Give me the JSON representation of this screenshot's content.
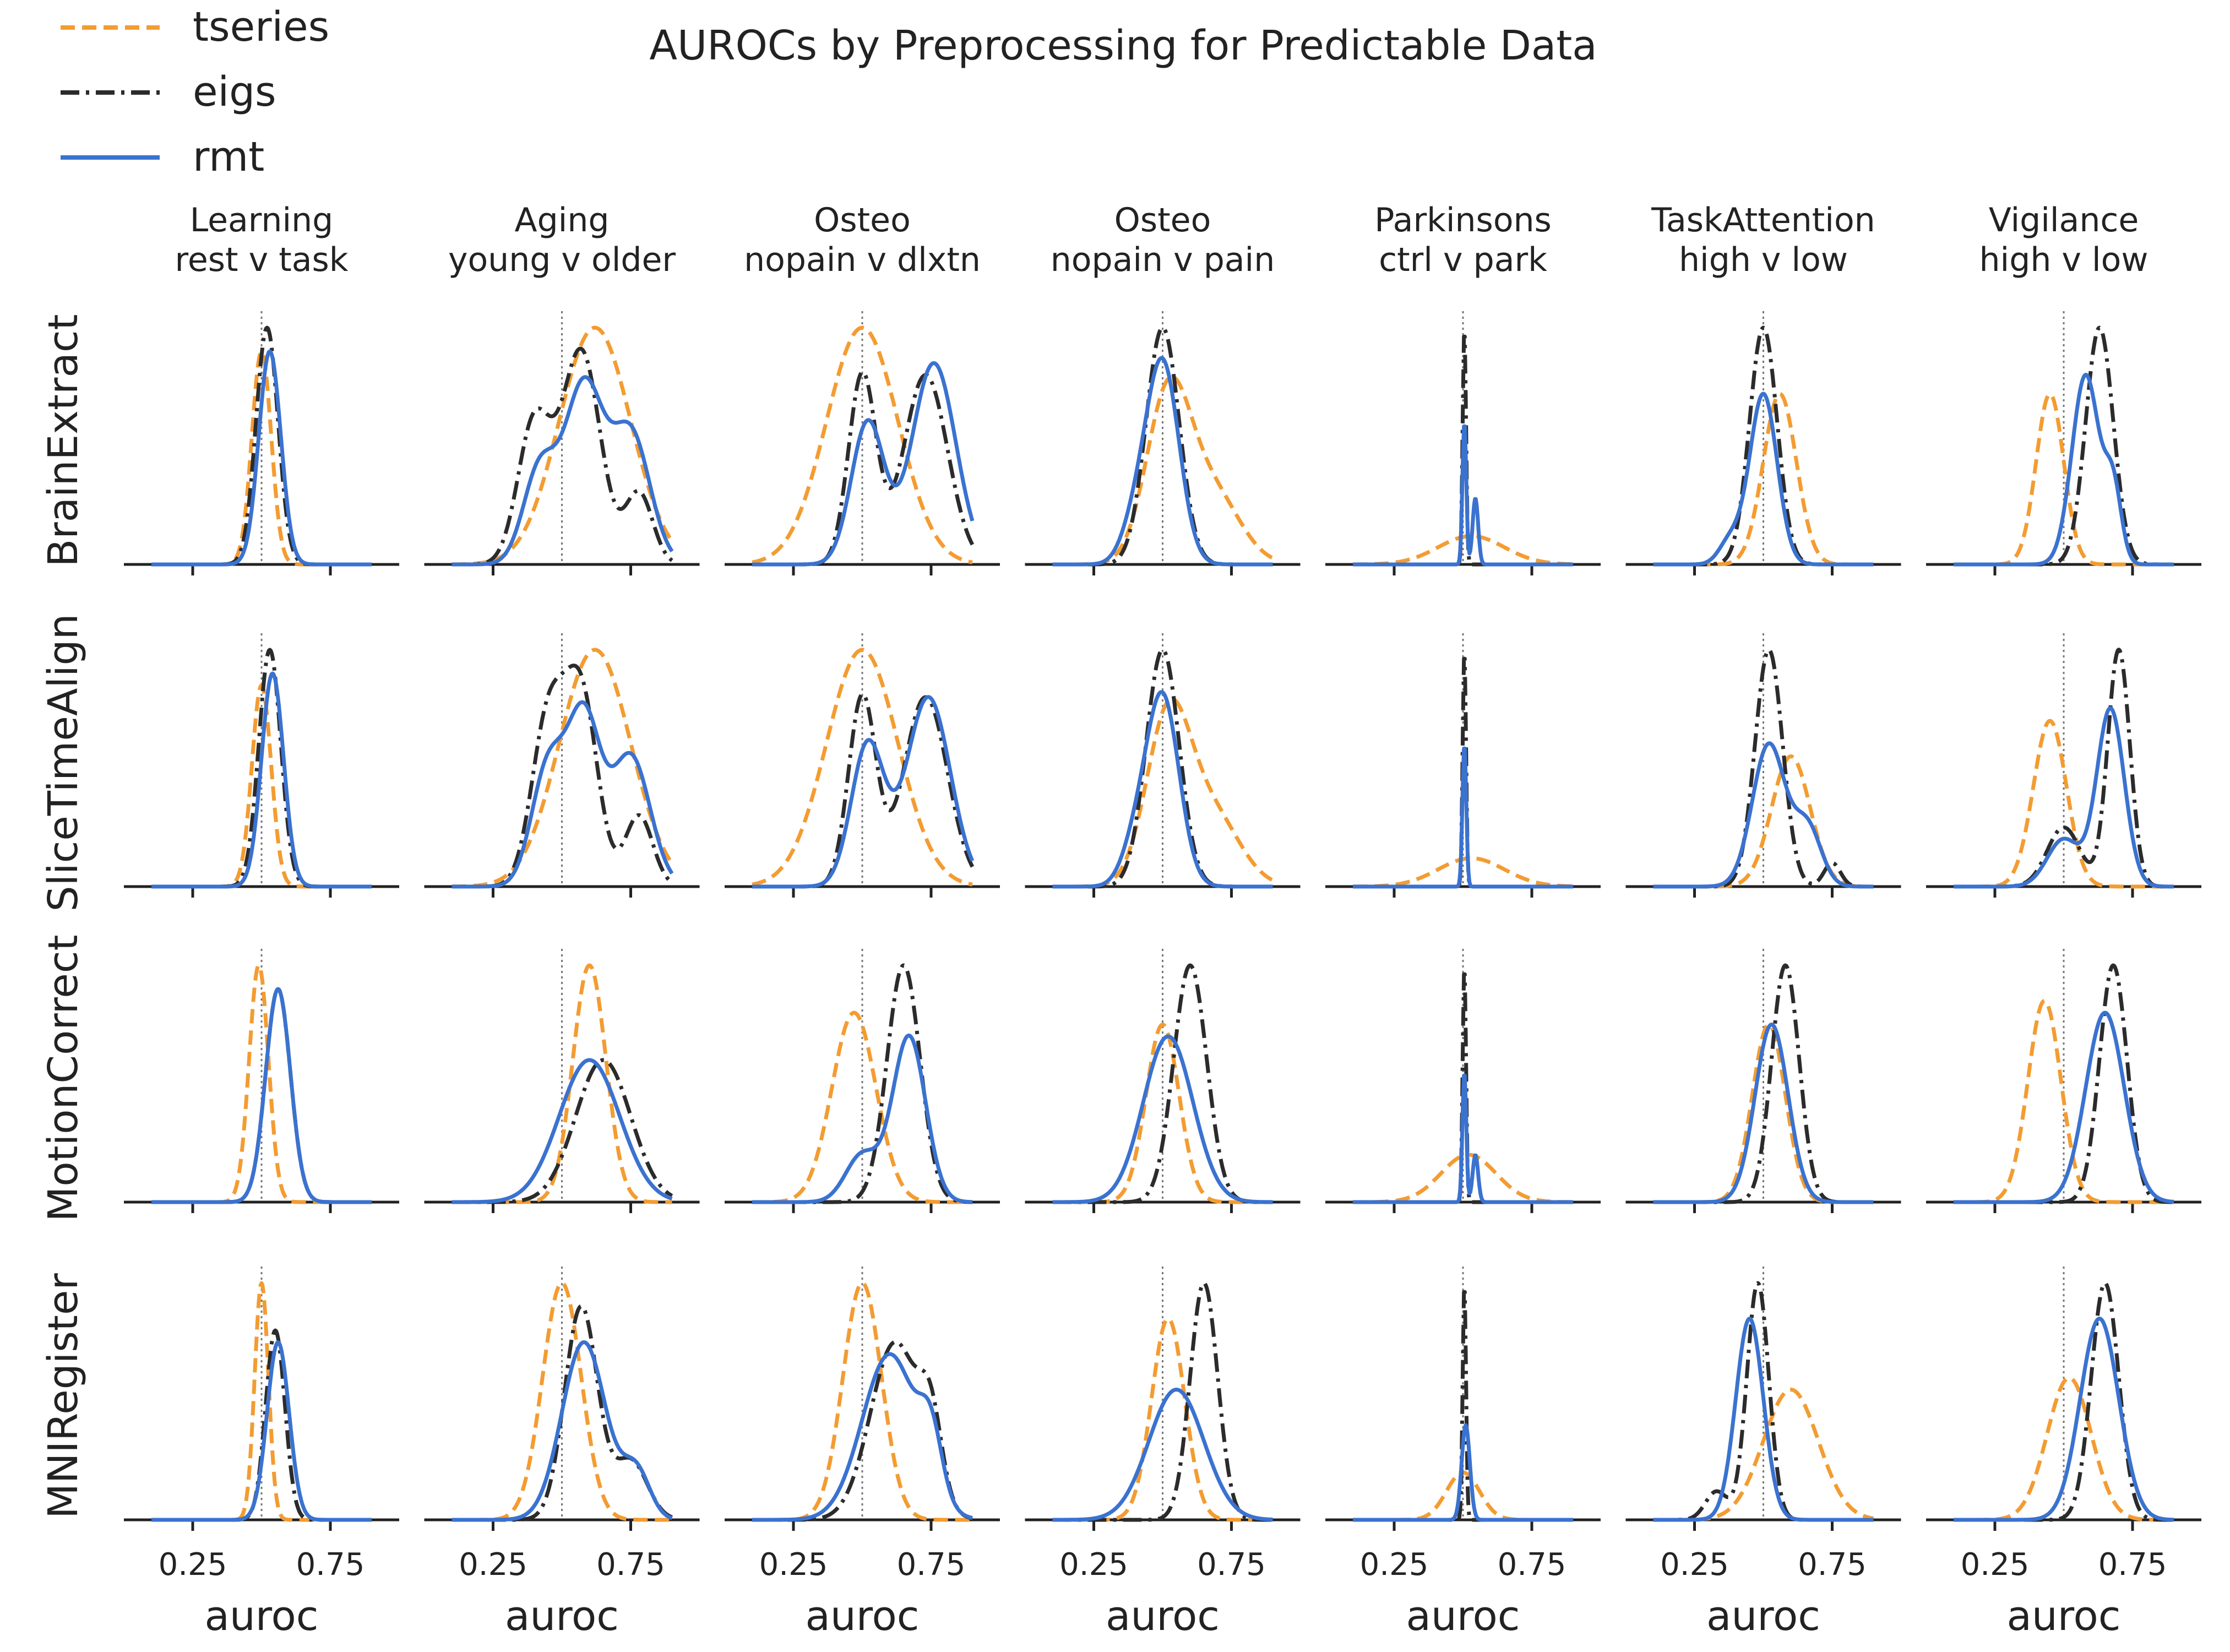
{
  "chart_data": {
    "type": "line",
    "title": "AUROCs by Preprocessing for Predictable Data",
    "xlabel": "auroc",
    "x_ticks": [
      "0.25",
      "0.75"
    ],
    "xlim": [
      0.0,
      1.0
    ],
    "chance_line": 0.5,
    "legend": {
      "placement": "top-left",
      "entries": [
        {
          "name": "tseries",
          "color": "#f39c32",
          "dash": "dashed"
        },
        {
          "name": "eigs",
          "color": "#2b2b2b",
          "dash": "dashdot"
        },
        {
          "name": "rmt",
          "color": "#3a72d0",
          "dash": "solid"
        }
      ]
    },
    "columns": [
      {
        "line1": "Learning",
        "line2": "rest v task"
      },
      {
        "line1": "Aging",
        "line2": "young v older"
      },
      {
        "line1": "Osteo",
        "line2": "nopain v dlxtn"
      },
      {
        "line1": "Osteo",
        "line2": "nopain v pain"
      },
      {
        "line1": "Parkinsons",
        "line2": "ctrl v park"
      },
      {
        "line1": "TaskAttention",
        "line2": "high v low"
      },
      {
        "line1": "Vigilance",
        "line2": "high v low"
      }
    ],
    "rows": [
      "BrainExtract",
      "SliceTimeAlign",
      "MotionCorrect",
      "MNIRegister"
    ],
    "series_order": [
      "tseries",
      "eigs",
      "rmt"
    ],
    "densities": [
      [
        {
          "tseries": [
            [
              0.5,
              0.035,
              0.9
            ]
          ],
          "eigs": [
            [
              0.52,
              0.04,
              1.0
            ]
          ],
          "rmt": [
            [
              0.53,
              0.04,
              0.9
            ]
          ]
        },
        {
          "tseries": [
            [
              0.62,
              0.13,
              1.0
            ]
          ],
          "eigs": [
            [
              0.4,
              0.06,
              0.6
            ],
            [
              0.57,
              0.07,
              0.9
            ],
            [
              0.78,
              0.05,
              0.3
            ]
          ],
          "rmt": [
            [
              0.42,
              0.06,
              0.4
            ],
            [
              0.58,
              0.07,
              0.75
            ],
            [
              0.75,
              0.07,
              0.55
            ]
          ]
        },
        {
          "tseries": [
            [
              0.5,
              0.13,
              1.0
            ]
          ],
          "eigs": [
            [
              0.5,
              0.05,
              0.8
            ],
            [
              0.73,
              0.08,
              0.8
            ]
          ],
          "rmt": [
            [
              0.52,
              0.06,
              0.6
            ],
            [
              0.76,
              0.08,
              0.85
            ]
          ]
        },
        {
          "tseries": [
            [
              0.52,
              0.08,
              0.7
            ],
            [
              0.68,
              0.1,
              0.3
            ]
          ],
          "eigs": [
            [
              0.5,
              0.06,
              1.0
            ]
          ],
          "rmt": [
            [
              0.5,
              0.06,
              0.85
            ],
            [
              0.4,
              0.05,
              0.15
            ]
          ]
        },
        {
          "tseries": [
            [
              0.53,
              0.12,
              0.12
            ]
          ],
          "eigs": [
            [
              0.505,
              0.006,
              1.0
            ]
          ],
          "rmt": [
            [
              0.505,
              0.007,
              0.6
            ],
            [
              0.545,
              0.01,
              0.28
            ]
          ]
        },
        {
          "tseries": [
            [
              0.56,
              0.06,
              0.72
            ]
          ],
          "eigs": [
            [
              0.5,
              0.05,
              1.0
            ]
          ],
          "rmt": [
            [
              0.5,
              0.05,
              0.72
            ],
            [
              0.38,
              0.04,
              0.1
            ]
          ]
        },
        {
          "tseries": [
            [
              0.45,
              0.05,
              0.72
            ]
          ],
          "eigs": [
            [
              0.63,
              0.05,
              1.0
            ]
          ],
          "rmt": [
            [
              0.58,
              0.05,
              0.8
            ],
            [
              0.68,
              0.03,
              0.3
            ]
          ]
        }
      ],
      [
        {
          "tseries": [
            [
              0.5,
              0.035,
              0.85
            ]
          ],
          "eigs": [
            [
              0.53,
              0.04,
              1.0
            ]
          ],
          "rmt": [
            [
              0.54,
              0.04,
              0.9
            ]
          ]
        },
        {
          "tseries": [
            [
              0.62,
              0.13,
              1.0
            ]
          ],
          "eigs": [
            [
              0.45,
              0.06,
              0.7
            ],
            [
              0.57,
              0.06,
              0.8
            ],
            [
              0.78,
              0.05,
              0.3
            ]
          ],
          "rmt": [
            [
              0.45,
              0.06,
              0.5
            ],
            [
              0.58,
              0.06,
              0.7
            ],
            [
              0.75,
              0.07,
              0.55
            ]
          ]
        },
        {
          "tseries": [
            [
              0.5,
              0.13,
              1.0
            ]
          ],
          "eigs": [
            [
              0.5,
              0.05,
              0.8
            ],
            [
              0.73,
              0.08,
              0.8
            ]
          ],
          "rmt": [
            [
              0.52,
              0.06,
              0.6
            ],
            [
              0.74,
              0.08,
              0.8
            ]
          ]
        },
        {
          "tseries": [
            [
              0.52,
              0.08,
              0.7
            ],
            [
              0.68,
              0.1,
              0.3
            ]
          ],
          "eigs": [
            [
              0.5,
              0.06,
              1.0
            ]
          ],
          "rmt": [
            [
              0.5,
              0.06,
              0.8
            ],
            [
              0.4,
              0.05,
              0.15
            ]
          ]
        },
        {
          "tseries": [
            [
              0.53,
              0.12,
              0.12
            ]
          ],
          "eigs": [
            [
              0.505,
              0.006,
              1.0
            ]
          ],
          "rmt": [
            [
              0.505,
              0.007,
              0.6
            ]
          ]
        },
        {
          "tseries": [
            [
              0.6,
              0.07,
              0.55
            ]
          ],
          "eigs": [
            [
              0.52,
              0.05,
              1.0
            ],
            [
              0.75,
              0.03,
              0.1
            ]
          ],
          "rmt": [
            [
              0.52,
              0.06,
              0.6
            ],
            [
              0.66,
              0.05,
              0.25
            ]
          ]
        },
        {
          "tseries": [
            [
              0.45,
              0.06,
              0.7
            ]
          ],
          "eigs": [
            [
              0.7,
              0.04,
              1.0
            ],
            [
              0.5,
              0.06,
              0.25
            ]
          ],
          "rmt": [
            [
              0.67,
              0.05,
              0.75
            ],
            [
              0.5,
              0.06,
              0.2
            ]
          ]
        }
      ],
      [
        {
          "tseries": [
            [
              0.49,
              0.035,
              1.0
            ]
          ],
          "eigs": [
            [
              0.56,
              0.045,
              0.9
            ]
          ],
          "rmt": [
            [
              0.56,
              0.045,
              0.9
            ]
          ]
        },
        {
          "tseries": [
            [
              0.6,
              0.06,
              1.0
            ]
          ],
          "eigs": [
            [
              0.65,
              0.1,
              0.6
            ]
          ],
          "rmt": [
            [
              0.6,
              0.11,
              0.6
            ]
          ]
        },
        {
          "tseries": [
            [
              0.47,
              0.08,
              0.8
            ]
          ],
          "eigs": [
            [
              0.65,
              0.06,
              1.0
            ]
          ],
          "rmt": [
            [
              0.67,
              0.06,
              0.7
            ],
            [
              0.5,
              0.06,
              0.2
            ]
          ]
        },
        {
          "tseries": [
            [
              0.5,
              0.06,
              0.75
            ]
          ],
          "eigs": [
            [
              0.6,
              0.06,
              1.0
            ]
          ],
          "rmt": [
            [
              0.52,
              0.09,
              0.7
            ]
          ]
        },
        {
          "tseries": [
            [
              0.52,
              0.1,
              0.2
            ]
          ],
          "eigs": [
            [
              0.505,
              0.006,
              1.0
            ]
          ],
          "rmt": [
            [
              0.505,
              0.007,
              0.55
            ],
            [
              0.545,
              0.01,
              0.2
            ]
          ]
        },
        {
          "tseries": [
            [
              0.52,
              0.06,
              0.75
            ]
          ],
          "eigs": [
            [
              0.58,
              0.05,
              1.0
            ]
          ],
          "rmt": [
            [
              0.53,
              0.06,
              0.75
            ]
          ]
        },
        {
          "tseries": [
            [
              0.43,
              0.06,
              0.85
            ]
          ],
          "eigs": [
            [
              0.68,
              0.05,
              1.0
            ]
          ],
          "rmt": [
            [
              0.65,
              0.07,
              0.8
            ]
          ]
        }
      ],
      [
        {
          "tseries": [
            [
              0.5,
              0.025,
              1.0
            ]
          ],
          "eigs": [
            [
              0.55,
              0.035,
              0.8
            ]
          ],
          "rmt": [
            [
              0.56,
              0.04,
              0.75
            ]
          ]
        },
        {
          "tseries": [
            [
              0.5,
              0.07,
              1.0
            ]
          ],
          "eigs": [
            [
              0.57,
              0.06,
              0.9
            ],
            [
              0.75,
              0.06,
              0.25
            ]
          ],
          "rmt": [
            [
              0.58,
              0.08,
              0.75
            ],
            [
              0.77,
              0.05,
              0.2
            ]
          ]
        },
        {
          "tseries": [
            [
              0.5,
              0.07,
              1.0
            ]
          ],
          "eigs": [
            [
              0.62,
              0.09,
              0.75
            ],
            [
              0.75,
              0.04,
              0.3
            ]
          ],
          "rmt": [
            [
              0.6,
              0.1,
              0.7
            ],
            [
              0.75,
              0.04,
              0.25
            ]
          ]
        },
        {
          "tseries": [
            [
              0.52,
              0.06,
              0.85
            ]
          ],
          "eigs": [
            [
              0.65,
              0.05,
              1.0
            ]
          ],
          "rmt": [
            [
              0.55,
              0.1,
              0.55
            ]
          ]
        },
        {
          "tseries": [
            [
              0.5,
              0.06,
              0.2
            ]
          ],
          "eigs": [
            [
              0.505,
              0.006,
              1.0
            ]
          ],
          "rmt": [
            [
              0.51,
              0.015,
              0.4
            ]
          ]
        },
        {
          "tseries": [
            [
              0.6,
              0.1,
              0.55
            ]
          ],
          "eigs": [
            [
              0.48,
              0.04,
              1.0
            ],
            [
              0.33,
              0.04,
              0.12
            ]
          ],
          "rmt": [
            [
              0.45,
              0.05,
              0.85
            ]
          ]
        },
        {
          "tseries": [
            [
              0.52,
              0.08,
              0.6
            ]
          ],
          "eigs": [
            [
              0.65,
              0.05,
              1.0
            ]
          ],
          "rmt": [
            [
              0.63,
              0.07,
              0.85
            ]
          ]
        }
      ]
    ]
  }
}
